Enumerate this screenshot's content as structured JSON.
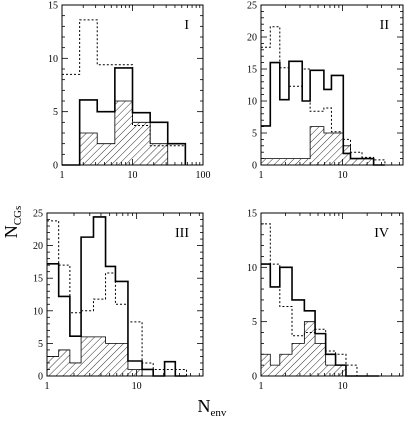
{
  "chart_data": {
    "type": "histogram-grid",
    "ylabel": "N",
    "ylabel_sub": "CGs",
    "xlabel": "N",
    "xlabel_sub": "env",
    "x_scale": "log",
    "series_styles": [
      {
        "key": "dotted",
        "style": "dotted line"
      },
      {
        "key": "solid",
        "style": "solid line"
      },
      {
        "key": "hatched",
        "style": "hatched fill"
      }
    ],
    "panels": [
      {
        "label": "I",
        "xlim": [
          1,
          100
        ],
        "ylim": [
          0,
          15
        ],
        "xticks": [
          1,
          10,
          100
        ],
        "yticks": [
          0,
          5,
          10,
          15
        ],
        "bin_edges": [
          1,
          1.78,
          3.16,
          5.62,
          10,
          17.8,
          31.6,
          56.2
        ],
        "dotted": [
          8.5,
          13.6,
          9.4,
          9.4,
          3.7,
          1.8,
          1.8
        ],
        "solid": [
          0,
          6.1,
          5.0,
          9.1,
          4.9,
          4.0,
          2.0
        ],
        "hatched": [
          0,
          3.0,
          2.0,
          6.0,
          4.0,
          2.0,
          0
        ]
      },
      {
        "label": "II",
        "xlim": [
          1,
          55
        ],
        "ylim": [
          0,
          25
        ],
        "xticks": [
          1,
          10
        ],
        "yticks": [
          0,
          5,
          10,
          15,
          20,
          25
        ],
        "bin_edges": [
          1,
          1.3,
          1.7,
          2.2,
          3.2,
          4.0,
          5.9,
          7.3,
          10.2,
          12.5,
          17.3,
          24,
          33
        ],
        "dotted": [
          18.4,
          21.6,
          15.2,
          12.3,
          15.0,
          8.4,
          8.9,
          5.2,
          4.0,
          2.0,
          1.2,
          0.8
        ],
        "solid": [
          6.1,
          16.0,
          10.2,
          16.2,
          10.0,
          14.8,
          11.8,
          14.0,
          1.8,
          1.0,
          1.0,
          0
        ],
        "hatched": [
          1.0,
          1.0,
          1.0,
          1.0,
          1.0,
          6.0,
          5.0,
          5.0,
          3.0,
          1.0,
          1.0,
          0
        ]
      },
      {
        "label": "III",
        "xlim": [
          1,
          55
        ],
        "ylim": [
          0,
          25
        ],
        "xticks": [
          1,
          10
        ],
        "yticks": [
          0,
          5,
          10,
          15,
          20,
          25
        ],
        "bin_edges": [
          1,
          1.35,
          1.8,
          2.4,
          3.3,
          4.5,
          5.8,
          8.0,
          11.5,
          15.3,
          20.5,
          27,
          36
        ],
        "dotted": [
          23.8,
          17.0,
          9.7,
          10.0,
          11.8,
          15.8,
          11.0,
          8.3,
          2.0,
          1.0,
          1.0,
          1.0
        ],
        "solid": [
          17.2,
          12.2,
          6.1,
          21.3,
          24.4,
          16.8,
          14.5,
          2.3,
          1.0,
          0,
          2.2,
          0
        ],
        "hatched": [
          3.0,
          4.0,
          2.0,
          6.0,
          6.0,
          5.0,
          5.0,
          1.0,
          0,
          0,
          0,
          0
        ]
      },
      {
        "label": "IV",
        "xlim": [
          1,
          55
        ],
        "ylim": [
          0,
          15
        ],
        "xticks": [
          1,
          10
        ],
        "yticks": [
          0,
          5,
          10,
          15
        ],
        "bin_edges": [
          1,
          1.3,
          1.7,
          2.4,
          3.4,
          4.6,
          6.2,
          8.2,
          11.0,
          15.0,
          20.5,
          28
        ],
        "dotted": [
          14.0,
          10.3,
          6.4,
          3.7,
          4.0,
          4.3,
          2.3,
          2.0,
          1.0,
          0,
          0
        ],
        "solid": [
          10.3,
          8.2,
          10.0,
          7.0,
          6.0,
          3.9,
          2.0,
          1.0,
          0,
          0,
          0
        ],
        "hatched": [
          2.0,
          1.0,
          2.0,
          3.0,
          5.0,
          3.0,
          1.0,
          1.0,
          0,
          0,
          0
        ]
      }
    ]
  }
}
